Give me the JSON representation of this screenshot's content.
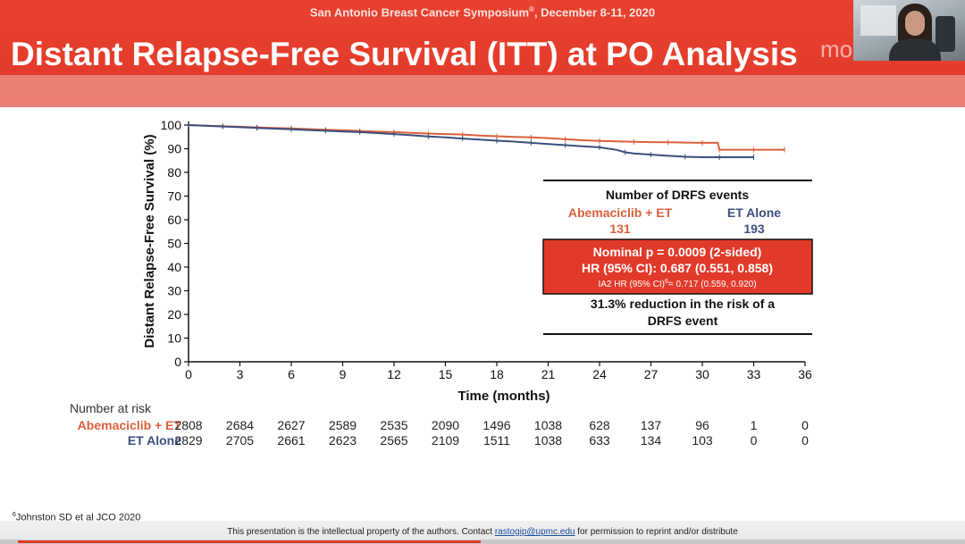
{
  "header": {
    "conference_pre": "San Antonio Breast Cancer Symposium",
    "conference_mark": "®",
    "conference_post": ", December 8-11, 2020",
    "title": "Distant Relapse-Free Survival (ITT) at PO Analysis",
    "logo_fragment": "mo"
  },
  "chart_data": {
    "type": "line",
    "xlabel": "Time (months)",
    "ylabel": "Distant Relapse-Free Survival (%)",
    "xlim": [
      0,
      36
    ],
    "ylim": [
      0,
      100
    ],
    "xticks": [
      0,
      3,
      6,
      9,
      12,
      15,
      18,
      21,
      24,
      27,
      30,
      33,
      36
    ],
    "yticks": [
      0,
      10,
      20,
      30,
      40,
      50,
      60,
      70,
      80,
      90,
      100
    ],
    "series": [
      {
        "name": "Abemaciclib + ET",
        "color": "#d9603b",
        "x": [
          0,
          1,
          2,
          3,
          4,
          5,
          6,
          7,
          8,
          9,
          10,
          11,
          12,
          13,
          14,
          15,
          16,
          17,
          18,
          19,
          20,
          21,
          22,
          23,
          24,
          25,
          26,
          27,
          28,
          29,
          30,
          30.9,
          31,
          32,
          33,
          34,
          34.8
        ],
        "y": [
          100,
          99.7,
          99.5,
          99.3,
          99.0,
          98.8,
          98.6,
          98.3,
          98.0,
          97.8,
          97.5,
          97.2,
          97.0,
          96.7,
          96.4,
          96.2,
          96.0,
          95.6,
          95.3,
          95.0,
          94.8,
          94.5,
          94.0,
          93.6,
          93.3,
          93.1,
          92.9,
          92.8,
          92.7,
          92.6,
          92.5,
          92.5,
          89.6,
          89.6,
          89.6,
          89.6,
          89.6
        ]
      },
      {
        "name": "ET Alone",
        "color": "#3b4f7c",
        "x": [
          0,
          1,
          2,
          3,
          4,
          5,
          6,
          7,
          8,
          9,
          10,
          11,
          12,
          13,
          14,
          15,
          16,
          17,
          18,
          19,
          20,
          21,
          22,
          23,
          24,
          25,
          25.5,
          26,
          27,
          28,
          29,
          30,
          31,
          32,
          33
        ],
        "y": [
          100,
          99.7,
          99.4,
          99.1,
          98.8,
          98.5,
          98.2,
          97.9,
          97.6,
          97.3,
          97.0,
          96.6,
          96.2,
          95.7,
          95.2,
          94.8,
          94.3,
          93.9,
          93.4,
          93.0,
          92.5,
          92.0,
          91.5,
          91.0,
          90.6,
          89.5,
          88.5,
          88.0,
          87.5,
          87.0,
          86.6,
          86.4,
          86.4,
          86.4,
          86.4
        ]
      }
    ]
  },
  "stats_box": {
    "heading": "Number of DRFS events",
    "arm1_name": "Abemaciclib + ET",
    "arm1_events": "131",
    "arm2_name": "ET Alone",
    "arm2_events": "193",
    "p_value": "Nominal p = 0.0009 (2-sided)",
    "hr": "HR (95% CI): 0.687 (0.551, 0.858)",
    "ia2_pre": "IA2 HR (95% CI)",
    "ia2_sup": "6",
    "ia2_post": "= 0.717 (0.559, 0.920)",
    "reduction_line1": "31.3% reduction in the risk of a",
    "reduction_line2": "DRFS event",
    "highlight_color": "#e23a2a"
  },
  "risk_table": {
    "title": "Number at risk",
    "rows": [
      {
        "label": "Abemaciclib + ET",
        "color": "#d9603b",
        "values": [
          "2808",
          "2684",
          "2627",
          "2589",
          "2535",
          "2090",
          "1496",
          "1038",
          "628",
          "137",
          "96",
          "1",
          "0"
        ]
      },
      {
        "label": "ET Alone",
        "color": "#3b4f7c",
        "values": [
          "2829",
          "2705",
          "2661",
          "2623",
          "2565",
          "2109",
          "1511",
          "1038",
          "633",
          "134",
          "103",
          "0",
          "0"
        ]
      }
    ]
  },
  "footnote": {
    "sup": "6",
    "text": "Johnston SD et al JCO 2020"
  },
  "footer": {
    "pre": "This presentation is the intellectual property of the authors. Contact ",
    "email": "rastogip@upmc.edu",
    "post": " for permission to reprint and/or distribute"
  }
}
